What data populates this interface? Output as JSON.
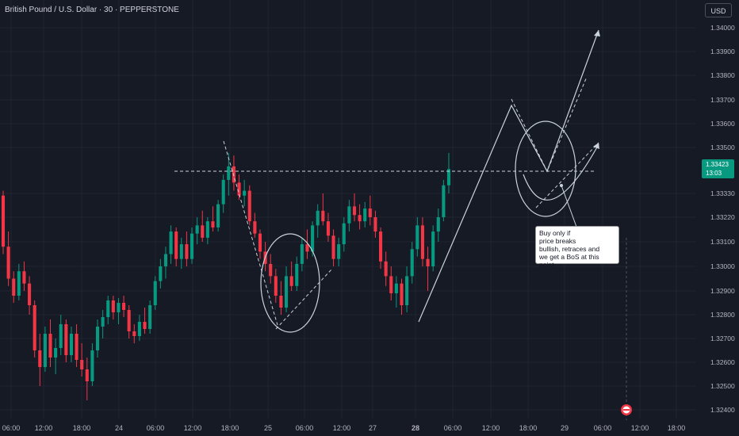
{
  "header": {
    "title": "British Pound / U.S. Dollar · 30 · PEPPERSTONE",
    "currency_button": "USD"
  },
  "price_tag": {
    "price": "1.33423",
    "countdown": "13:03",
    "value": 1.33423
  },
  "annotation": {
    "text": "Buy only if\nprice  breaks\nbullish, retraces and\nwe get a BoS at this point"
  },
  "colors": {
    "up": "#089981",
    "down": "#f23645",
    "background": "#161a25",
    "drawing": "#c9d3db"
  },
  "chart_data": {
    "type": "candlestick",
    "symbol": "GBPUSD",
    "timeframe": "30",
    "y_ticks": [
      {
        "label": "1.34000",
        "value": 1.34
      },
      {
        "label": "1.33900",
        "value": 1.339
      },
      {
        "label": "1.33800",
        "value": 1.338
      },
      {
        "label": "1.33700",
        "value": 1.337
      },
      {
        "label": "1.33600",
        "value": 1.336
      },
      {
        "label": "1.33500",
        "value": 1.335
      },
      {
        "label": "1.33330",
        "value": 1.3333
      },
      {
        "label": "1.33220",
        "value": 1.3322
      },
      {
        "label": "1.33100",
        "value": 1.331
      },
      {
        "label": "1.33000",
        "value": 1.33
      },
      {
        "label": "1.32900",
        "value": 1.329
      },
      {
        "label": "1.32800",
        "value": 1.328
      },
      {
        "label": "1.32700",
        "value": 1.327
      },
      {
        "label": "1.32600",
        "value": 1.326
      },
      {
        "label": "1.32500",
        "value": 1.325
      },
      {
        "label": "1.32400",
        "value": 1.324
      }
    ],
    "x_ticks": [
      "06:00",
      "12:00",
      "18:00",
      "24",
      "06:00",
      "12:00",
      "18:00",
      "25",
      "06:00",
      "12:00",
      "27",
      "28",
      "06:00",
      "12:00",
      "18:00",
      "29",
      "06:00",
      "12:00",
      "18:00"
    ],
    "x_tick_bold": [
      false,
      false,
      false,
      false,
      false,
      false,
      false,
      false,
      false,
      false,
      false,
      true,
      false,
      false,
      false,
      false,
      false,
      false,
      false
    ],
    "ohlc": [
      [
        1.3332,
        1.3334,
        1.3305,
        1.3308
      ],
      [
        1.3308,
        1.3315,
        1.3292,
        1.3295
      ],
      [
        1.3295,
        1.3298,
        1.3285,
        1.3288
      ],
      [
        1.3288,
        1.3301,
        1.3286,
        1.3298
      ],
      [
        1.3298,
        1.3302,
        1.329,
        1.3293
      ],
      [
        1.3293,
        1.3296,
        1.328,
        1.3284
      ],
      [
        1.3284,
        1.3286,
        1.3262,
        1.3265
      ],
      [
        1.3265,
        1.3272,
        1.325,
        1.3258
      ],
      [
        1.3258,
        1.3275,
        1.3256,
        1.3272
      ],
      [
        1.3272,
        1.3278,
        1.3258,
        1.3262
      ],
      [
        1.3262,
        1.327,
        1.3255,
        1.3266
      ],
      [
        1.3266,
        1.328,
        1.3263,
        1.3276
      ],
      [
        1.3276,
        1.3278,
        1.326,
        1.3263
      ],
      [
        1.3263,
        1.3275,
        1.326,
        1.3272
      ],
      [
        1.3272,
        1.3276,
        1.3258,
        1.3261
      ],
      [
        1.3261,
        1.3268,
        1.3254,
        1.3257
      ],
      [
        1.3257,
        1.3262,
        1.3244,
        1.3252
      ],
      [
        1.3252,
        1.3268,
        1.325,
        1.3265
      ],
      [
        1.3265,
        1.3278,
        1.3262,
        1.3275
      ],
      [
        1.3275,
        1.3282,
        1.327,
        1.3279
      ],
      [
        1.3279,
        1.3288,
        1.3276,
        1.3286
      ],
      [
        1.3286,
        1.3288,
        1.3278,
        1.3281
      ],
      [
        1.3281,
        1.3287,
        1.3276,
        1.3285
      ],
      [
        1.3285,
        1.3288,
        1.3279,
        1.3282
      ],
      [
        1.3282,
        1.3284,
        1.327,
        1.3273
      ],
      [
        1.3273,
        1.3276,
        1.3268,
        1.3271
      ],
      [
        1.3271,
        1.328,
        1.3269,
        1.3277
      ],
      [
        1.3277,
        1.3283,
        1.3272,
        1.3274
      ],
      [
        1.3274,
        1.3286,
        1.3272,
        1.3284
      ],
      [
        1.3284,
        1.3296,
        1.3282,
        1.3294
      ],
      [
        1.3294,
        1.3303,
        1.3291,
        1.33
      ],
      [
        1.33,
        1.3308,
        1.3295,
        1.3305
      ],
      [
        1.3305,
        1.3318,
        1.3301,
        1.3315
      ],
      [
        1.3315,
        1.3317,
        1.33,
        1.3303
      ],
      [
        1.3303,
        1.3312,
        1.3299,
        1.3309
      ],
      [
        1.3309,
        1.3315,
        1.33,
        1.3303
      ],
      [
        1.3303,
        1.3317,
        1.3301,
        1.3314
      ],
      [
        1.3314,
        1.3322,
        1.3309,
        1.3318
      ],
      [
        1.3318,
        1.3325,
        1.331,
        1.3312
      ],
      [
        1.3312,
        1.3322,
        1.3309,
        1.332
      ],
      [
        1.332,
        1.3327,
        1.3315,
        1.3317
      ],
      [
        1.3317,
        1.333,
        1.3315,
        1.3328
      ],
      [
        1.3328,
        1.334,
        1.3324,
        1.3338
      ],
      [
        1.3338,
        1.3348,
        1.3332,
        1.3343
      ],
      [
        1.3343,
        1.3347,
        1.3334,
        1.3337
      ],
      [
        1.3337,
        1.334,
        1.333,
        1.3332
      ],
      [
        1.3332,
        1.3338,
        1.3327,
        1.3334
      ],
      [
        1.3334,
        1.3336,
        1.3318,
        1.332
      ],
      [
        1.332,
        1.3324,
        1.3312,
        1.3314
      ],
      [
        1.3314,
        1.3316,
        1.3303,
        1.3306
      ],
      [
        1.3306,
        1.331,
        1.3298,
        1.3301
      ],
      [
        1.3301,
        1.3305,
        1.3293,
        1.3296
      ],
      [
        1.3296,
        1.3299,
        1.3285,
        1.3288
      ],
      [
        1.3288,
        1.3294,
        1.328,
        1.3283
      ],
      [
        1.3283,
        1.33,
        1.3281,
        1.3296
      ],
      [
        1.3296,
        1.3302,
        1.329,
        1.3292
      ],
      [
        1.3292,
        1.3304,
        1.329,
        1.3301
      ],
      [
        1.3301,
        1.3312,
        1.3298,
        1.3309
      ],
      [
        1.3309,
        1.3316,
        1.3303,
        1.3306
      ],
      [
        1.3306,
        1.332,
        1.3304,
        1.3318
      ],
      [
        1.3318,
        1.3328,
        1.3312,
        1.3325
      ],
      [
        1.3325,
        1.3333,
        1.3318,
        1.332
      ],
      [
        1.332,
        1.3324,
        1.331,
        1.3313
      ],
      [
        1.3313,
        1.3316,
        1.33,
        1.3303
      ],
      [
        1.3303,
        1.3312,
        1.33,
        1.3309
      ],
      [
        1.3309,
        1.3322,
        1.3306,
        1.3319
      ],
      [
        1.3319,
        1.333,
        1.3315,
        1.3327
      ],
      [
        1.3327,
        1.3333,
        1.332,
        1.3323
      ],
      [
        1.3323,
        1.3328,
        1.3316,
        1.332
      ],
      [
        1.332,
        1.3329,
        1.3317,
        1.3326
      ],
      [
        1.3326,
        1.3332,
        1.3318,
        1.3322
      ],
      [
        1.3322,
        1.3325,
        1.3312,
        1.3315
      ],
      [
        1.3315,
        1.3317,
        1.3299,
        1.3302
      ],
      [
        1.3302,
        1.3306,
        1.3292,
        1.3296
      ],
      [
        1.3296,
        1.33,
        1.3286,
        1.3289
      ],
      [
        1.3289,
        1.3296,
        1.3283,
        1.3293
      ],
      [
        1.3293,
        1.3295,
        1.328,
        1.3284
      ],
      [
        1.3284,
        1.33,
        1.3281,
        1.3296
      ],
      [
        1.3296,
        1.331,
        1.3293,
        1.3307
      ],
      [
        1.3307,
        1.3322,
        1.3304,
        1.3318
      ],
      [
        1.3318,
        1.3322,
        1.33,
        1.3303
      ],
      [
        1.3303,
        1.3308,
        1.329,
        1.33
      ],
      [
        1.33,
        1.3318,
        1.3298,
        1.3315
      ],
      [
        1.3315,
        1.3326,
        1.331,
        1.3322
      ],
      [
        1.3322,
        1.3338,
        1.332,
        1.3336
      ],
      [
        1.3336,
        1.3348,
        1.3333,
        1.3342
      ]
    ],
    "current_price": 1.33423
  }
}
